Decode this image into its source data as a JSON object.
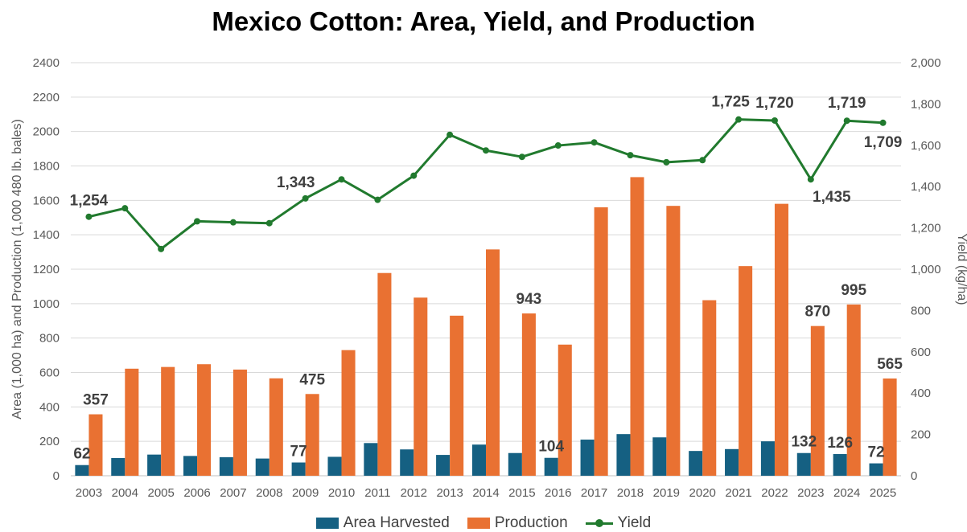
{
  "chart_data": {
    "type": "bar",
    "title": "Mexico Cotton: Area, Yield, and Production",
    "categories": [
      "2003",
      "2004",
      "2005",
      "2006",
      "2007",
      "2008",
      "2009",
      "2010",
      "2011",
      "2012",
      "2013",
      "2014",
      "2015",
      "2016",
      "2017",
      "2018",
      "2019",
      "2020",
      "2021",
      "2022",
      "2023",
      "2024",
      "2025"
    ],
    "ylabel": "Area (1,000 ha) and Production (1,000 480 lb. bales)",
    "y2label": "Yield (kg/ha)",
    "ylim": [
      0,
      2400
    ],
    "y2lim": [
      0,
      2000
    ],
    "yticks": [
      "0",
      "200",
      "400",
      "600",
      "800",
      "1000",
      "1200",
      "1400",
      "1600",
      "1800",
      "2000",
      "2200",
      "2400"
    ],
    "y2ticks": [
      "0",
      "200",
      "400",
      "600",
      "800",
      "1,000",
      "1,200",
      "1,400",
      "1,600",
      "1,800",
      "2,000"
    ],
    "grid": true,
    "legend_position": "bottom",
    "series": [
      {
        "name": "Area Harvested",
        "type": "bar",
        "axis": "left",
        "color": "#156082",
        "values": [
          62,
          103,
          123,
          115,
          108,
          100,
          77,
          110,
          190,
          153,
          121,
          181,
          132,
          104,
          210,
          242,
          223,
          144,
          155,
          200,
          132,
          126,
          72
        ]
      },
      {
        "name": "Production",
        "type": "bar",
        "axis": "left",
        "color": "#E97132",
        "values": [
          357,
          622,
          632,
          648,
          617,
          566,
          475,
          730,
          1178,
          1035,
          930,
          1315,
          943,
          762,
          1560,
          1735,
          1568,
          1020,
          1218,
          1580,
          870,
          995,
          565
        ]
      },
      {
        "name": "Yield",
        "type": "line",
        "axis": "right",
        "color": "#217A2E",
        "values": [
          1254,
          1295,
          1098,
          1232,
          1227,
          1223,
          1343,
          1435,
          1336,
          1453,
          1651,
          1575,
          1544,
          1599,
          1614,
          1552,
          1518,
          1528,
          1725,
          1720,
          1435,
          1719,
          1709
        ]
      }
    ],
    "data_labels": {
      "area": [
        {
          "i": 0,
          "text": "62"
        },
        {
          "i": 6,
          "text": "77"
        },
        {
          "i": 13,
          "text": "104"
        },
        {
          "i": 20,
          "text": "132"
        },
        {
          "i": 21,
          "text": "126"
        },
        {
          "i": 22,
          "text": "72"
        }
      ],
      "production": [
        {
          "i": 0,
          "text": "357"
        },
        {
          "i": 6,
          "text": "475"
        },
        {
          "i": 12,
          "text": "943"
        },
        {
          "i": 20,
          "text": "870"
        },
        {
          "i": 21,
          "text": "995"
        },
        {
          "i": 22,
          "text": "565"
        }
      ],
      "yield": [
        {
          "i": 0,
          "text": "1,254"
        },
        {
          "i": 6,
          "text": "1,343"
        },
        {
          "i": 18,
          "text": "1,725"
        },
        {
          "i": 19,
          "text": "1,720"
        },
        {
          "i": 20,
          "text": "1,435"
        },
        {
          "i": 21,
          "text": "1,719"
        },
        {
          "i": 22,
          "text": "1,709"
        }
      ]
    }
  }
}
